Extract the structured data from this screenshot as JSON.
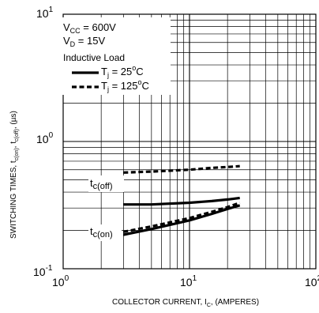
{
  "chart_data": {
    "type": "line",
    "xscale": "log",
    "yscale": "log",
    "xlim": [
      1,
      100
    ],
    "ylim": [
      0.1,
      10
    ],
    "grid": true,
    "xlabel_text": "COLLECTOR CURRENT, I",
    "xlabel_sub": "C",
    "xlabel_tail": ", (AMPERES)",
    "ylabel_parts": {
      "a": "SWITCHING TIMES, t",
      "b": "c(on)",
      "c": ", t",
      "d": "c(off)",
      "e": ", (µs)"
    },
    "x_ticks": [
      {
        "base": "10",
        "exp": "0",
        "value": 1
      },
      {
        "base": "10",
        "exp": "1",
        "value": 10
      },
      {
        "base": "10",
        "exp": "2",
        "value": 100
      }
    ],
    "y_ticks": [
      {
        "base": "10",
        "exp": "-1",
        "value": 0.1
      },
      {
        "base": "10",
        "exp": "0",
        "value": 1
      },
      {
        "base": "10",
        "exp": "1",
        "value": 10
      }
    ],
    "conditions": {
      "vcc_main": "V",
      "vcc_sub": "CC",
      "vcc_val": " = 600V",
      "vd_main": "V",
      "vd_sub": "D",
      "vd_val": " = 15V",
      "load": "Inductive Load"
    },
    "legend": [
      {
        "main": "T",
        "sub": "j",
        "val": " = 25",
        "sup": "o",
        "unit": "C",
        "style": "solid"
      },
      {
        "main": "T",
        "sub": "j",
        "val": " = 125",
        "sup": "o",
        "unit": "C",
        "style": "dashed"
      }
    ],
    "curve_labels": [
      {
        "main": "t",
        "sub": "c(off)"
      },
      {
        "main": "t",
        "sub": "c(on)"
      }
    ],
    "series": [
      {
        "curve": "tc(off)",
        "tj": "25C",
        "style": "solid",
        "x": [
          3,
          5,
          10,
          15,
          20,
          25
        ],
        "y": [
          0.32,
          0.32,
          0.33,
          0.34,
          0.35,
          0.36
        ]
      },
      {
        "curve": "tc(off)",
        "tj": "125C",
        "style": "dashed",
        "x": [
          3,
          5,
          10,
          15,
          20,
          25
        ],
        "y": [
          0.57,
          0.58,
          0.6,
          0.62,
          0.63,
          0.64
        ]
      },
      {
        "curve": "tc(on)",
        "tj": "25C",
        "style": "solid",
        "x": [
          3,
          5,
          10,
          15,
          20,
          25
        ],
        "y": [
          0.185,
          0.205,
          0.24,
          0.27,
          0.295,
          0.315
        ]
      },
      {
        "curve": "tc(on)",
        "tj": "125C",
        "style": "dashed",
        "x": [
          3,
          5,
          10,
          15,
          20,
          25
        ],
        "y": [
          0.195,
          0.215,
          0.25,
          0.28,
          0.305,
          0.33
        ]
      }
    ]
  }
}
